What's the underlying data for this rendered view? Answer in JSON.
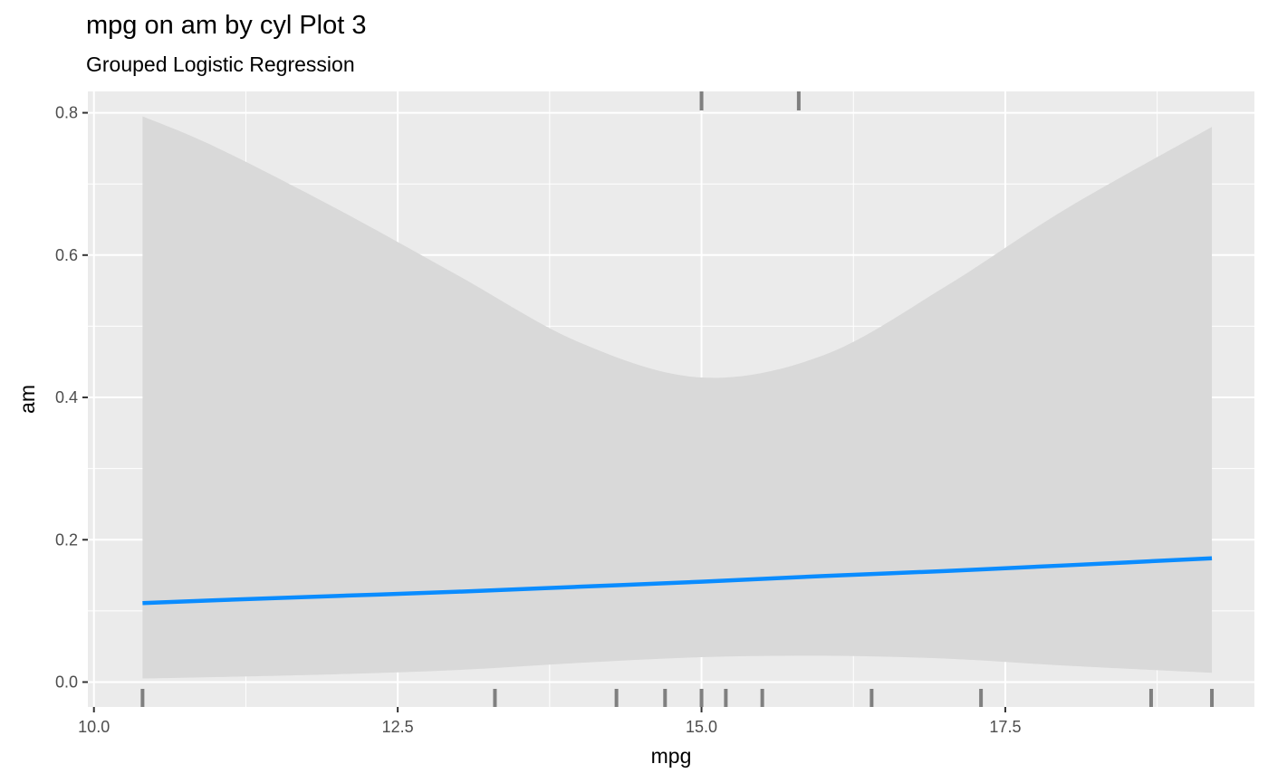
{
  "chart_data": {
    "type": "line",
    "title": "mpg on am by cyl Plot 3",
    "subtitle": "Grouped Logistic Regression",
    "xlabel": "mpg",
    "ylabel": "am",
    "xlim": [
      9.95,
      19.55
    ],
    "ylim": [
      -0.035,
      0.83
    ],
    "x_ticks": [
      10.0,
      12.5,
      15.0,
      17.5
    ],
    "x_tick_labels": [
      "10.0",
      "12.5",
      "15.0",
      "17.5"
    ],
    "y_ticks": [
      0.0,
      0.2,
      0.4,
      0.6,
      0.8
    ],
    "y_tick_labels": [
      "0.0",
      "0.2",
      "0.4",
      "0.6",
      "0.8"
    ],
    "grid": true,
    "series": [
      {
        "color": "#0a8cff",
        "x": [
          10.4,
          11.0,
          12.0,
          13.0,
          14.0,
          15.0,
          16.0,
          17.0,
          18.0,
          19.2
        ],
        "y": [
          0.111,
          0.115,
          0.121,
          0.127,
          0.134,
          0.141,
          0.149,
          0.156,
          0.164,
          0.174
        ],
        "ci_lower": [
          0.005,
          0.007,
          0.011,
          0.017,
          0.027,
          0.035,
          0.037,
          0.033,
          0.023,
          0.013
        ],
        "ci_upper": [
          0.795,
          0.752,
          0.665,
          0.571,
          0.477,
          0.428,
          0.459,
          0.555,
          0.665,
          0.78
        ]
      }
    ],
    "ribbon_color": "#d9d9d9",
    "rug_bottom": [
      10.4,
      13.3,
      14.3,
      14.7,
      15.0,
      15.2,
      15.5,
      16.4,
      17.3,
      18.7,
      19.2
    ],
    "rug_top": [
      15.0,
      15.8
    ]
  }
}
